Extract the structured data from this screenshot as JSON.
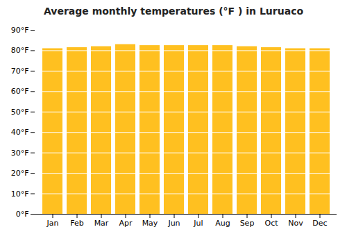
{
  "chart_data": {
    "type": "bar",
    "title": "Average monthly temperatures (°F ) in Luruaco",
    "categories": [
      "Jan",
      "Feb",
      "Mar",
      "Apr",
      "May",
      "Jun",
      "Jul",
      "Aug",
      "Sep",
      "Oct",
      "Nov",
      "Dec"
    ],
    "values": [
      81.0,
      81.5,
      82.0,
      83.0,
      82.5,
      82.5,
      82.5,
      82.5,
      82.0,
      81.5,
      81.0,
      81.0
    ],
    "color": "#FFC020",
    "ylim": [
      0,
      90
    ],
    "yticks": [
      {
        "value": 0,
        "label": "0°F"
      },
      {
        "value": 10,
        "label": "10°F"
      },
      {
        "value": 20,
        "label": "20°F"
      },
      {
        "value": 30,
        "label": "30°F"
      },
      {
        "value": 40,
        "label": "40°F"
      },
      {
        "value": 50,
        "label": "50°F"
      },
      {
        "value": 60,
        "label": "60°F"
      },
      {
        "value": 70,
        "label": "70°F"
      },
      {
        "value": 80,
        "label": "80°F"
      },
      {
        "value": 90,
        "label": "90°F"
      }
    ],
    "grid": true
  }
}
